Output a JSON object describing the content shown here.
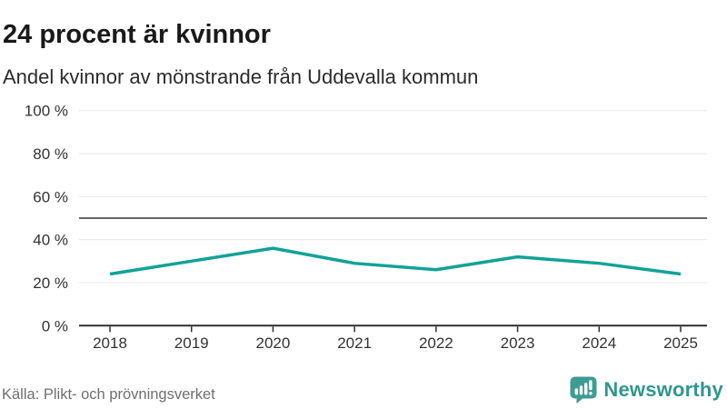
{
  "header": {
    "title": "24 procent är kvinnor",
    "subtitle": "Andel kvinnor av mönstrande från Uddevalla kommun"
  },
  "chart_data": {
    "type": "line",
    "title": "24 procent är kvinnor",
    "subtitle": "Andel kvinnor av mönstrande från Uddevalla kommun",
    "categories": [
      "2018",
      "2019",
      "2020",
      "2021",
      "2022",
      "2023",
      "2024",
      "2025"
    ],
    "series": [
      {
        "name": "Andel kvinnor av mönstrande",
        "values": [
          24,
          30,
          36,
          29,
          26,
          32,
          29,
          24
        ]
      }
    ],
    "xlabel": "",
    "ylabel": "",
    "ylim": [
      0,
      100
    ],
    "yticks": [
      0,
      20,
      40,
      60,
      80,
      100
    ],
    "ytick_labels": [
      "0 %",
      "20 %",
      "40 %",
      "60 %",
      "80 %",
      "100 %"
    ],
    "reference_line": 50,
    "grid": true,
    "legend": "none",
    "line_color": "#12A298"
  },
  "footer": {
    "source": "Källa: Plikt- och prövningsverket",
    "brand": "Newsworthy"
  },
  "colors": {
    "accent": "#12A298",
    "brand": "#2F968E",
    "brand_icon": "#3D9B93",
    "title_text": "#191919",
    "axis_text": "#333333",
    "axis_line": "#2e2e2e",
    "reference_line": "#666666",
    "grid_line": "#e8e8e8",
    "muted_text": "#6f6f6f"
  }
}
